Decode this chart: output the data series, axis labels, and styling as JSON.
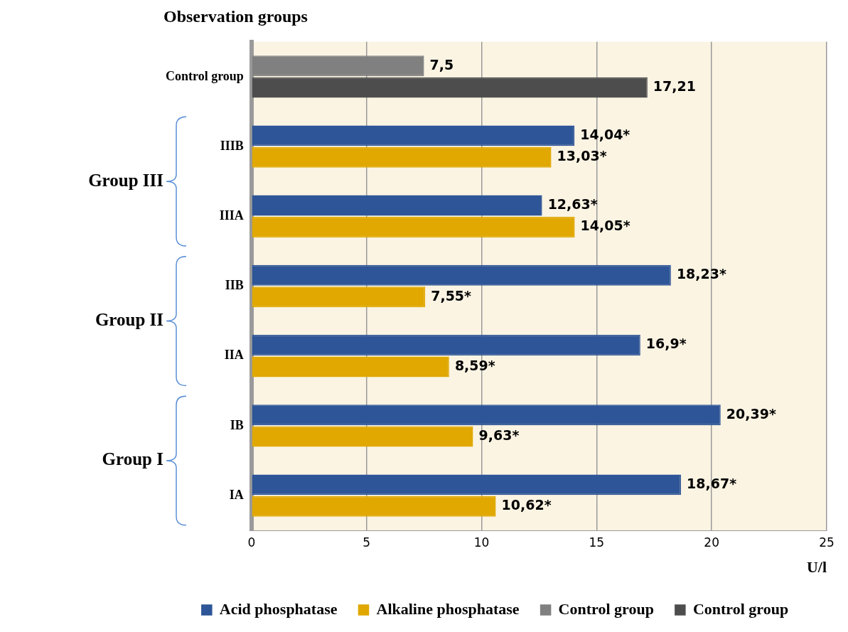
{
  "chart_data": {
    "type": "bar",
    "orientation": "horizontal",
    "title": "Observation groups",
    "xlabel": "U/l",
    "categories": [
      "Control group",
      "IIIB",
      "IIIA",
      "IIB",
      "IIA",
      "IB",
      "IA"
    ],
    "series": [
      {
        "name": "Acid phosphatase",
        "color": "#2e5597",
        "values": [
          null,
          14.04,
          12.63,
          18.23,
          16.9,
          20.39,
          18.67
        ],
        "value_labels": [
          null,
          "14,04*",
          "12,63*",
          "18,23*",
          "16,9*",
          "20,39*",
          "18,67*"
        ]
      },
      {
        "name": "Alkaline phosphatase",
        "color": "#e0a800",
        "values": [
          null,
          13.03,
          14.05,
          7.55,
          8.59,
          9.63,
          10.62
        ],
        "value_labels": [
          null,
          "13,03*",
          "14,05*",
          "7,55*",
          "8,59*",
          "9,63*",
          "10,62*"
        ]
      },
      {
        "name": "Control group",
        "color": "#808080",
        "values": [
          7.5,
          null,
          null,
          null,
          null,
          null,
          null
        ],
        "value_labels": [
          "7,5",
          null,
          null,
          null,
          null,
          null,
          null
        ]
      },
      {
        "name": "Control group",
        "color": "#4d4d4d",
        "values": [
          17.21,
          null,
          null,
          null,
          null,
          null,
          null
        ],
        "value_labels": [
          "17,21",
          null,
          null,
          null,
          null,
          null,
          null
        ]
      }
    ],
    "annotations": [
      "Group III",
      "Group II",
      "Group I"
    ],
    "xlim": [
      0,
      25
    ],
    "xticks": [
      0,
      5,
      10,
      15,
      20,
      25
    ],
    "grid": "x",
    "legend": "bottom"
  }
}
